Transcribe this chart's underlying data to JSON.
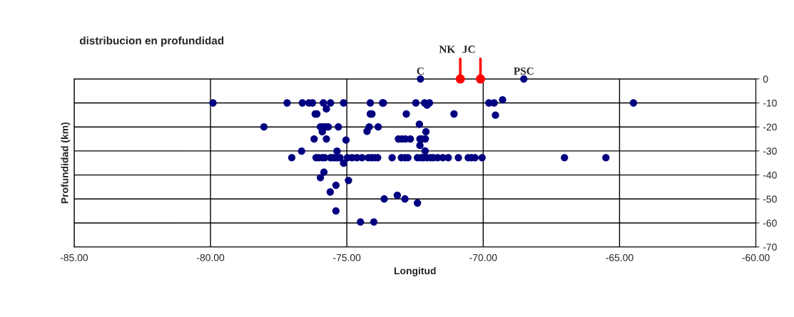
{
  "chart_data": {
    "type": "scatter",
    "title": "distribucion en profundidad",
    "xlabel": "Longitud",
    "ylabel": "Profundidad (km)",
    "xlim": [
      -85,
      -60
    ],
    "xticks": [
      {
        "value": -85,
        "label": "-85.00"
      },
      {
        "value": -80,
        "label": "-80.00"
      },
      {
        "value": -75,
        "label": "-75.00"
      },
      {
        "value": -70,
        "label": "-70.00"
      },
      {
        "value": -65,
        "label": "-65.00"
      },
      {
        "value": -60,
        "label": "-60.00"
      }
    ],
    "ylim": [
      -70,
      0
    ],
    "yticks": [
      0,
      -10,
      -20,
      -30,
      -40,
      -50,
      -60,
      -70
    ],
    "grid": true,
    "marker": "circle",
    "series": [
      {
        "color": "#000080",
        "x": [
          -79.91,
          -77.19,
          -76.63,
          -76.39,
          -76.26,
          -75.86,
          -75.6,
          -75.12,
          -74.14,
          -73.69,
          -73.66,
          -72.47,
          -72.15,
          -72.06,
          -71.97,
          -69.79,
          -69.6,
          -69.29,
          -64.49,
          -75.75,
          -76.16,
          -76.1,
          -74.14,
          -74.08,
          -72.82,
          -71.07,
          -69.55,
          -78.04,
          -75.97,
          -75.87,
          -75.77,
          -75.68,
          -75.31,
          -74.18,
          -73.85,
          -72.34,
          -75.9,
          -74.26,
          -72.1,
          -76.2,
          -75.75,
          -75.03,
          -73.11,
          -72.98,
          -72.85,
          -72.67,
          -72.32,
          -72.24,
          -72.12,
          -72.32,
          -76.66,
          -75.36,
          -72.13,
          -77.02,
          -76.13,
          -76.03,
          -75.9,
          -75.81,
          -75.6,
          -75.51,
          -75.42,
          -75.34,
          -75.25,
          -74.98,
          -74.81,
          -74.63,
          -74.44,
          -74.21,
          -74.09,
          -73.98,
          -73.87,
          -73.34,
          -73.0,
          -72.87,
          -72.76,
          -72.41,
          -72.28,
          -72.19,
          -72.06,
          -71.93,
          -71.83,
          -71.67,
          -71.48,
          -71.28,
          -70.91,
          -70.55,
          -70.43,
          -70.3,
          -70.04,
          -67.02,
          -65.5,
          -75.12,
          -75.84,
          -75.97,
          -74.94,
          -75.4,
          -75.61,
          -73.63,
          -73.15,
          -72.87,
          -72.41,
          -75.4,
          -74.5,
          -74.01,
          -72.3,
          -68.51
        ],
        "values": [
          -10,
          -10,
          -10,
          -10,
          -10,
          -10,
          -10,
          -10,
          -10,
          -10,
          -10,
          -10,
          -10,
          -10.9,
          -10,
          -10,
          -10,
          -8.7,
          -10,
          -12.5,
          -14.6,
          -14.6,
          -14.6,
          -14.6,
          -14.6,
          -14.6,
          -15.1,
          -20,
          -20,
          -20,
          -20,
          -20,
          -20,
          -20,
          -20,
          -18.9,
          -22,
          -21.8,
          -22,
          -25,
          -25,
          -25.5,
          -25,
          -25,
          -25,
          -25,
          -25,
          -25,
          -25,
          -27.7,
          -30.1,
          -30.1,
          -30,
          -32.8,
          -32.8,
          -32.8,
          -32.8,
          -32.8,
          -32.8,
          -32.8,
          -32.8,
          -32.8,
          -32.8,
          -32.8,
          -32.8,
          -32.8,
          -32.8,
          -32.8,
          -32.8,
          -32.8,
          -32.8,
          -32.8,
          -32.8,
          -32.8,
          -32.8,
          -32.8,
          -32.8,
          -32.8,
          -32.8,
          -32.8,
          -32.8,
          -32.8,
          -32.8,
          -32.8,
          -32.8,
          -32.8,
          -32.8,
          -32.8,
          -32.8,
          -32.8,
          -32.8,
          -35.1,
          -38.8,
          -41.1,
          -42.3,
          -44.3,
          -47.1,
          -50,
          -48.5,
          -50,
          -51.7,
          -55,
          -59.6,
          -59.6,
          0,
          0
        ]
      },
      {
        "type": "lollipop",
        "color": "#ff0000",
        "x": [
          -70.84,
          -70.1
        ],
        "values": [
          0,
          0
        ]
      }
    ],
    "annotations": [
      {
        "text": "C",
        "x": -72.3,
        "y": 0
      },
      {
        "text": "NK",
        "x": -70.84,
        "y": 0
      },
      {
        "text": "JC",
        "x": -70.1,
        "y": 0
      },
      {
        "text": "PSC",
        "x": -68.51,
        "y": 0
      }
    ]
  }
}
